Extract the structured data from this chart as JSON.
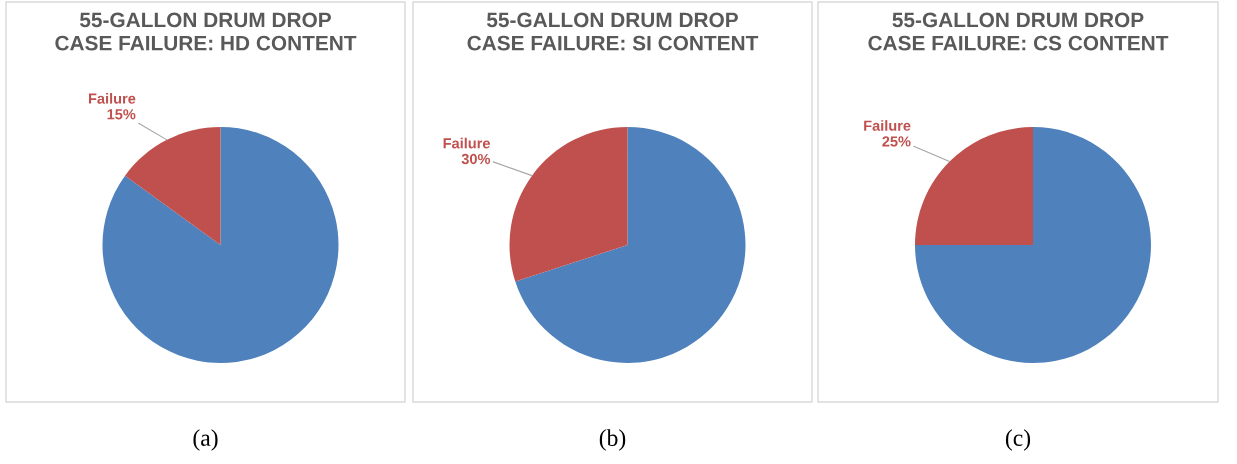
{
  "chart_data": [
    {
      "type": "pie",
      "title": "55-GALLON DRUM DROP\nCASE FAILURE: HD CONTENT",
      "categories": [
        null,
        "Failure"
      ],
      "values": [
        85,
        15
      ],
      "colors": [
        "#4f81bd",
        "#c0504d"
      ],
      "value_labels": [
        null,
        "15%"
      ],
      "legend": false,
      "annotations": [
        "(a)"
      ]
    },
    {
      "type": "pie",
      "title": "55-GALLON DRUM DROP\nCASE FAILURE: SI CONTENT",
      "categories": [
        null,
        "Failure"
      ],
      "values": [
        70,
        30
      ],
      "colors": [
        "#4f81bd",
        "#c0504d"
      ],
      "value_labels": [
        null,
        "30%"
      ],
      "legend": false,
      "annotations": [
        "(b)"
      ]
    },
    {
      "type": "pie",
      "title": "55-GALLON DRUM DROP\nCASE FAILURE: CS CONTENT",
      "categories": [
        null,
        "Failure"
      ],
      "values": [
        75,
        25
      ],
      "colors": [
        "#4f81bd",
        "#c0504d"
      ],
      "value_labels": [
        null,
        "25%"
      ],
      "legend": false,
      "annotations": [
        "(c)"
      ]
    }
  ]
}
